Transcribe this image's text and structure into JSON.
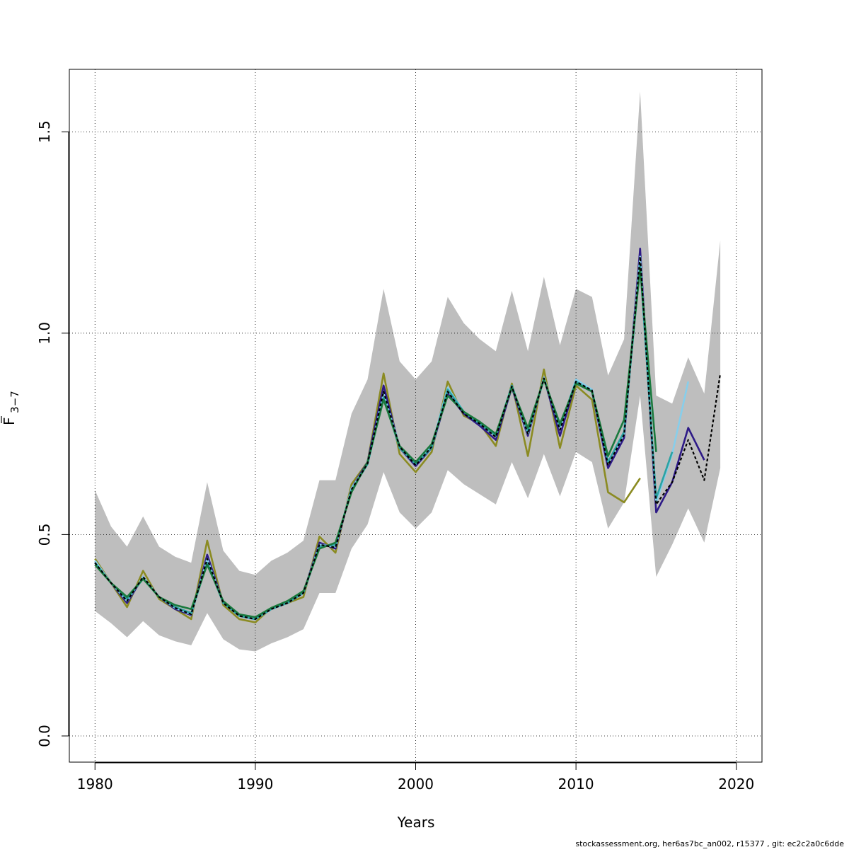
{
  "chart_data": {
    "type": "line",
    "title": "",
    "xlabel": "Years",
    "ylabel_main": "F",
    "ylabel_sub": "3−7",
    "xlim": [
      1978.4,
      2021.6
    ],
    "ylim": [
      -0.065,
      1.655
    ],
    "x_ticks": [
      1980,
      1990,
      2000,
      2010,
      2020
    ],
    "x_tick_labels": [
      "1980",
      "1990",
      "2000",
      "2010",
      "2020"
    ],
    "y_ticks": [
      0.0,
      0.5,
      1.0,
      1.5
    ],
    "y_tick_labels": [
      "0.0",
      "0.5",
      "1.0",
      "1.5"
    ],
    "grid": true,
    "ci_color": "#bebebe",
    "confidence_band": {
      "x": [
        1980,
        1981,
        1982,
        1983,
        1984,
        1985,
        1986,
        1987,
        1988,
        1989,
        1990,
        1991,
        1992,
        1993,
        1994,
        1995,
        1996,
        1997,
        1998,
        1999,
        2000,
        2001,
        2002,
        2003,
        2004,
        2005,
        2006,
        2007,
        2008,
        2009,
        2010,
        2011,
        2012,
        2013,
        2014,
        2015,
        2016,
        2017,
        2018,
        2019
      ],
      "lower": [
        0.31,
        0.28,
        0.245,
        0.285,
        0.25,
        0.235,
        0.225,
        0.305,
        0.24,
        0.215,
        0.21,
        0.23,
        0.245,
        0.265,
        0.355,
        0.355,
        0.465,
        0.525,
        0.655,
        0.555,
        0.515,
        0.555,
        0.66,
        0.625,
        0.6,
        0.575,
        0.68,
        0.59,
        0.7,
        0.595,
        0.705,
        0.68,
        0.515,
        0.58,
        0.845,
        0.395,
        0.475,
        0.565,
        0.48,
        0.665
      ],
      "upper": [
        0.61,
        0.52,
        0.47,
        0.545,
        0.47,
        0.445,
        0.43,
        0.63,
        0.46,
        0.41,
        0.4,
        0.435,
        0.455,
        0.485,
        0.635,
        0.635,
        0.8,
        0.885,
        1.11,
        0.93,
        0.885,
        0.93,
        1.09,
        1.025,
        0.985,
        0.955,
        1.105,
        0.955,
        1.14,
        0.97,
        1.11,
        1.09,
        0.895,
        0.985,
        1.6,
        0.845,
        0.825,
        0.94,
        0.85,
        1.23
      ]
    },
    "series": [
      {
        "color": "#8b8b22",
        "dashed": false,
        "x": [
          1980,
          1981,
          1982,
          1983,
          1984,
          1985,
          1986,
          1987,
          1988,
          1989,
          1990,
          1991,
          1992,
          1993,
          1994,
          1995,
          1996,
          1997,
          1998,
          1999,
          2000,
          2001,
          2002,
          2003,
          2004,
          2005,
          2006,
          2007,
          2008,
          2009,
          2010,
          2011,
          2012,
          2013,
          2014
        ],
        "y": [
          0.44,
          0.38,
          0.32,
          0.41,
          0.34,
          0.315,
          0.29,
          0.485,
          0.325,
          0.29,
          0.282,
          0.318,
          0.33,
          0.345,
          0.495,
          0.455,
          0.625,
          0.68,
          0.9,
          0.7,
          0.655,
          0.705,
          0.88,
          0.795,
          0.775,
          0.72,
          0.875,
          0.695,
          0.91,
          0.715,
          0.87,
          0.835,
          0.605,
          0.58,
          0.64
        ]
      },
      {
        "color": "#2e1a87",
        "dashed": false,
        "x": [
          1980,
          1981,
          1982,
          1983,
          1984,
          1985,
          1986,
          1987,
          1988,
          1989,
          1990,
          1991,
          1992,
          1993,
          1994,
          1995,
          1996,
          1997,
          1998,
          1999,
          2000,
          2001,
          2002,
          2003,
          2004,
          2005,
          2006,
          2007,
          2008,
          2009,
          2010,
          2011,
          2012,
          2013,
          2014,
          2015,
          2016,
          2017,
          2018
        ],
        "y": [
          0.43,
          0.38,
          0.33,
          0.395,
          0.345,
          0.315,
          0.3,
          0.45,
          0.33,
          0.298,
          0.29,
          0.315,
          0.33,
          0.355,
          0.48,
          0.465,
          0.615,
          0.68,
          0.87,
          0.715,
          0.67,
          0.715,
          0.85,
          0.8,
          0.77,
          0.735,
          0.865,
          0.745,
          0.89,
          0.745,
          0.88,
          0.855,
          0.665,
          0.74,
          1.21,
          0.555,
          0.63,
          0.765,
          0.685
        ]
      },
      {
        "color": "#87ceeb",
        "dashed": false,
        "x": [
          1980,
          1981,
          1982,
          1983,
          1984,
          1985,
          1986,
          1987,
          1988,
          1989,
          1990,
          1991,
          1992,
          1993,
          1994,
          1995,
          1996,
          1997,
          1998,
          1999,
          2000,
          2001,
          2002,
          2003,
          2004,
          2005,
          2006,
          2007,
          2008,
          2009,
          2010,
          2011,
          2012,
          2013,
          2014,
          2015,
          2016,
          2017
        ],
        "y": [
          0.435,
          0.38,
          0.335,
          0.395,
          0.345,
          0.318,
          0.302,
          0.44,
          0.33,
          0.3,
          0.29,
          0.315,
          0.33,
          0.355,
          0.475,
          0.47,
          0.615,
          0.675,
          0.85,
          0.72,
          0.675,
          0.72,
          0.865,
          0.805,
          0.775,
          0.745,
          0.87,
          0.75,
          0.89,
          0.765,
          0.885,
          0.86,
          0.68,
          0.75,
          1.19,
          0.58,
          0.7,
          0.88
        ]
      },
      {
        "color": "#2ba3a3",
        "dashed": false,
        "x": [
          1980,
          1981,
          1982,
          1983,
          1984,
          1985,
          1986,
          1987,
          1988,
          1989,
          1990,
          1991,
          1992,
          1993,
          1994,
          1995,
          1996,
          1997,
          1998,
          1999,
          2000,
          2001,
          2002,
          2003,
          2004,
          2005,
          2006,
          2007,
          2008,
          2009,
          2010,
          2011,
          2012,
          2013,
          2014,
          2015,
          2016
        ],
        "y": [
          0.43,
          0.38,
          0.34,
          0.39,
          0.345,
          0.32,
          0.305,
          0.43,
          0.33,
          0.298,
          0.29,
          0.315,
          0.33,
          0.355,
          0.47,
          0.475,
          0.61,
          0.675,
          0.84,
          0.715,
          0.675,
          0.715,
          0.86,
          0.805,
          0.775,
          0.745,
          0.87,
          0.755,
          0.885,
          0.77,
          0.88,
          0.855,
          0.68,
          0.755,
          1.17,
          0.59,
          0.705
        ]
      },
      {
        "color": "#1a7a3e",
        "dashed": false,
        "x": [
          1980,
          1981,
          1982,
          1983,
          1984,
          1985,
          1986,
          1987,
          1988,
          1989,
          1990,
          1991,
          1992,
          1993,
          1994,
          1995,
          1996,
          1997,
          1998,
          1999,
          2000,
          2001,
          2002,
          2003,
          2004,
          2005,
          2006,
          2007,
          2008,
          2009,
          2010,
          2011,
          2012,
          2013,
          2014,
          2015
        ],
        "y": [
          0.425,
          0.38,
          0.345,
          0.39,
          0.345,
          0.325,
          0.315,
          0.425,
          0.335,
          0.302,
          0.295,
          0.318,
          0.335,
          0.36,
          0.465,
          0.48,
          0.605,
          0.68,
          0.835,
          0.72,
          0.68,
          0.725,
          0.845,
          0.805,
          0.78,
          0.75,
          0.865,
          0.765,
          0.885,
          0.775,
          0.875,
          0.855,
          0.695,
          0.785,
          1.16,
          0.705
        ]
      },
      {
        "color": "#000000",
        "dashed": true,
        "x": [
          1980,
          1981,
          1982,
          1983,
          1984,
          1985,
          1986,
          1987,
          1988,
          1989,
          1990,
          1991,
          1992,
          1993,
          1994,
          1995,
          1996,
          1997,
          1998,
          1999,
          2000,
          2001,
          2002,
          2003,
          2004,
          2005,
          2006,
          2007,
          2008,
          2009,
          2010,
          2011,
          2012,
          2013,
          2014,
          2015,
          2016,
          2017,
          2018,
          2019
        ],
        "y": [
          0.43,
          0.38,
          0.335,
          0.395,
          0.345,
          0.318,
          0.302,
          0.44,
          0.33,
          0.298,
          0.29,
          0.315,
          0.33,
          0.355,
          0.475,
          0.468,
          0.612,
          0.676,
          0.855,
          0.718,
          0.672,
          0.718,
          0.855,
          0.8,
          0.775,
          0.742,
          0.868,
          0.75,
          0.888,
          0.76,
          0.88,
          0.858,
          0.672,
          0.748,
          1.19,
          0.575,
          0.63,
          0.735,
          0.635,
          0.9
        ]
      }
    ]
  },
  "footer": {
    "text": "stockassessment.org, her6as7bc_an002, r15377 , git: ec2c2a0c6dde"
  }
}
